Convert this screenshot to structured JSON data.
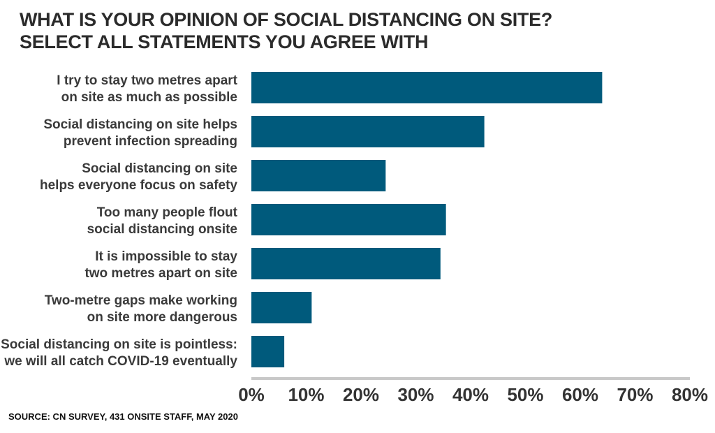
{
  "chart_data": {
    "type": "bar",
    "orientation": "horizontal",
    "title_lines": [
      "WHAT IS YOUR OPINION OF SOCIAL DISTANCING ON SITE?",
      "SELECT ALL STATEMENTS YOU AGREE WITH"
    ],
    "categories": [
      [
        "I try to stay two metres apart",
        "on site as much as possible"
      ],
      [
        "Social distancing on site helps",
        "prevent infection spreading"
      ],
      [
        "Social distancing on site",
        "helps everyone focus on safety"
      ],
      [
        "Too many people flout",
        "social distancing onsite"
      ],
      [
        "It is impossible to stay",
        "two metres apart on site"
      ],
      [
        "Two-metre gaps make working",
        "on site more dangerous"
      ],
      [
        "Social distancing on site is pointless:",
        "we will all catch COVID-19 eventually"
      ]
    ],
    "values": [
      64,
      42.5,
      24.5,
      35.5,
      34.5,
      11,
      6
    ],
    "unit": "%",
    "xlim": [
      0,
      80
    ],
    "xticks": [
      "0%",
      "10%",
      "20%",
      "30%",
      "40%",
      "50%",
      "60%",
      "70%",
      "80%"
    ],
    "grid": false,
    "bar_color": "#005a7c",
    "axis_color": "#c8c8c8"
  },
  "source": "SOURCE: CN SURVEY, 431 ONSITE STAFF, MAY 2020"
}
